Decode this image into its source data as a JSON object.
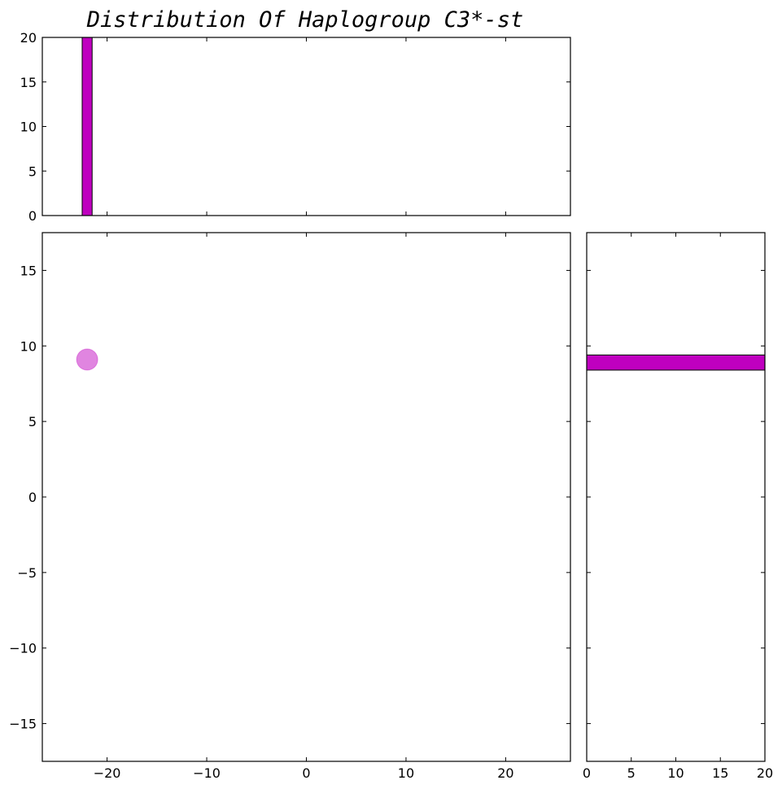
{
  "chart_data": {
    "title": "Distribution Of Haplogroup C3*-st",
    "colors": {
      "accent": "#bf00bf",
      "scatter_fill": "#dd78dd",
      "frame": "#000000"
    },
    "panels": [
      {
        "id": "top-histogram",
        "type": "bar",
        "orientation": "vertical",
        "xlim": [
          -26.5,
          26.5
        ],
        "ylim": [
          0,
          20
        ],
        "yticks": [
          0,
          5,
          10,
          15,
          20
        ],
        "bars": [
          {
            "x0": -22.5,
            "x1": -21.5,
            "value": 20
          }
        ]
      },
      {
        "id": "main-scatter",
        "type": "scatter",
        "xlim": [
          -26.5,
          26.5
        ],
        "ylim": [
          -17.5,
          17.5
        ],
        "xticks": [
          -20,
          -10,
          0,
          10,
          20
        ],
        "yticks": [
          -15,
          -10,
          -5,
          0,
          5,
          10,
          15
        ],
        "points": [
          {
            "x": -22,
            "y": 9.1
          }
        ]
      },
      {
        "id": "right-histogram",
        "type": "bar",
        "orientation": "horizontal",
        "xlim": [
          0,
          20
        ],
        "ylim": [
          -17.5,
          17.5
        ],
        "xticks": [
          0,
          5,
          10,
          15,
          20
        ],
        "bars": [
          {
            "y0": 8.4,
            "y1": 9.4,
            "value": 20
          }
        ]
      }
    ]
  }
}
